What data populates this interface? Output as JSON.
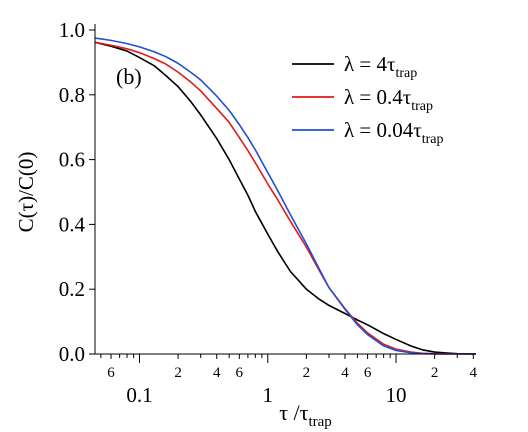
{
  "chart_data": {
    "type": "line",
    "x_scale": "log",
    "xlim": [
      0.045,
      42
    ],
    "ylim": [
      0.0,
      1.0
    ],
    "xlabel": {
      "main": "τ /τ",
      "sub": "trap"
    },
    "ylabel": "C(τ)/C(0)",
    "panel_label": "(b)",
    "legend_position": "top-right",
    "grid": false,
    "y_ticks": [
      {
        "value": 0.0,
        "label": "0.0"
      },
      {
        "value": 0.2,
        "label": "0.2"
      },
      {
        "value": 0.4,
        "label": "0.4"
      },
      {
        "value": 0.6,
        "label": "0.6"
      },
      {
        "value": 0.8,
        "label": "0.8"
      },
      {
        "value": 1.0,
        "label": "1.0"
      }
    ],
    "x_major_ticks": [
      {
        "value": 0.1,
        "label": "0.1"
      },
      {
        "value": 1,
        "label": "1"
      },
      {
        "value": 10,
        "label": "10"
      }
    ],
    "x_minor_ticks": [
      {
        "value": 0.06,
        "label": "6"
      },
      {
        "value": 0.2,
        "label": "2"
      },
      {
        "value": 0.4,
        "label": "4"
      },
      {
        "value": 0.6,
        "label": "6"
      },
      {
        "value": 2,
        "label": "2"
      },
      {
        "value": 4,
        "label": "4"
      },
      {
        "value": 6,
        "label": "6"
      },
      {
        "value": 20,
        "label": "2"
      },
      {
        "value": 40,
        "label": "4"
      }
    ],
    "series": [
      {
        "name": "λ = 4τ",
        "name_sub": "trap",
        "color": "#000000",
        "points": [
          [
            0.045,
            0.962
          ],
          [
            0.06,
            0.95
          ],
          [
            0.08,
            0.935
          ],
          [
            0.1,
            0.915
          ],
          [
            0.13,
            0.89
          ],
          [
            0.16,
            0.86
          ],
          [
            0.2,
            0.825
          ],
          [
            0.25,
            0.78
          ],
          [
            0.3,
            0.738
          ],
          [
            0.4,
            0.665
          ],
          [
            0.5,
            0.6
          ],
          [
            0.6,
            0.54
          ],
          [
            0.7,
            0.49
          ],
          [
            0.8,
            0.44
          ],
          [
            1.0,
            0.37
          ],
          [
            1.2,
            0.315
          ],
          [
            1.5,
            0.255
          ],
          [
            2.0,
            0.2
          ],
          [
            2.5,
            0.17
          ],
          [
            3.0,
            0.15
          ],
          [
            4.0,
            0.125
          ],
          [
            5.0,
            0.105
          ],
          [
            6.0,
            0.09
          ],
          [
            8.0,
            0.063
          ],
          [
            10,
            0.045
          ],
          [
            13,
            0.025
          ],
          [
            16,
            0.013
          ],
          [
            20,
            0.006
          ],
          [
            25,
            0.003
          ],
          [
            30,
            0.001
          ],
          [
            42,
            0.0
          ]
        ]
      },
      {
        "name": "λ = 0.4τ",
        "name_sub": "trap",
        "color": "#e01b1b",
        "points": [
          [
            0.045,
            0.962
          ],
          [
            0.06,
            0.953
          ],
          [
            0.08,
            0.942
          ],
          [
            0.1,
            0.93
          ],
          [
            0.13,
            0.912
          ],
          [
            0.16,
            0.895
          ],
          [
            0.2,
            0.87
          ],
          [
            0.25,
            0.84
          ],
          [
            0.3,
            0.812
          ],
          [
            0.4,
            0.758
          ],
          [
            0.5,
            0.715
          ],
          [
            0.6,
            0.668
          ],
          [
            0.7,
            0.628
          ],
          [
            0.8,
            0.59
          ],
          [
            1.0,
            0.525
          ],
          [
            1.2,
            0.475
          ],
          [
            1.5,
            0.41
          ],
          [
            2.0,
            0.33
          ],
          [
            2.5,
            0.26
          ],
          [
            3.0,
            0.205
          ],
          [
            4.0,
            0.14
          ],
          [
            5.0,
            0.095
          ],
          [
            6.0,
            0.065
          ],
          [
            8.0,
            0.03
          ],
          [
            10,
            0.015
          ],
          [
            13,
            0.006
          ],
          [
            16,
            0.002
          ],
          [
            20,
            0.001
          ],
          [
            42,
            0.0
          ]
        ]
      },
      {
        "name": "λ = 0.04τ",
        "name_sub": "trap",
        "color": "#1f4fd8",
        "points": [
          [
            0.045,
            0.975
          ],
          [
            0.06,
            0.968
          ],
          [
            0.08,
            0.958
          ],
          [
            0.1,
            0.948
          ],
          [
            0.13,
            0.933
          ],
          [
            0.16,
            0.918
          ],
          [
            0.2,
            0.897
          ],
          [
            0.25,
            0.87
          ],
          [
            0.3,
            0.846
          ],
          [
            0.4,
            0.796
          ],
          [
            0.5,
            0.752
          ],
          [
            0.6,
            0.708
          ],
          [
            0.7,
            0.668
          ],
          [
            0.8,
            0.63
          ],
          [
            1.0,
            0.56
          ],
          [
            1.2,
            0.503
          ],
          [
            1.5,
            0.43
          ],
          [
            2.0,
            0.34
          ],
          [
            2.5,
            0.265
          ],
          [
            3.0,
            0.205
          ],
          [
            4.0,
            0.138
          ],
          [
            5.0,
            0.09
          ],
          [
            6.0,
            0.06
          ],
          [
            8.0,
            0.025
          ],
          [
            10,
            0.011
          ],
          [
            13,
            0.004
          ],
          [
            16,
            0.001
          ],
          [
            20,
            0.0
          ],
          [
            42,
            0.0
          ]
        ]
      }
    ]
  }
}
